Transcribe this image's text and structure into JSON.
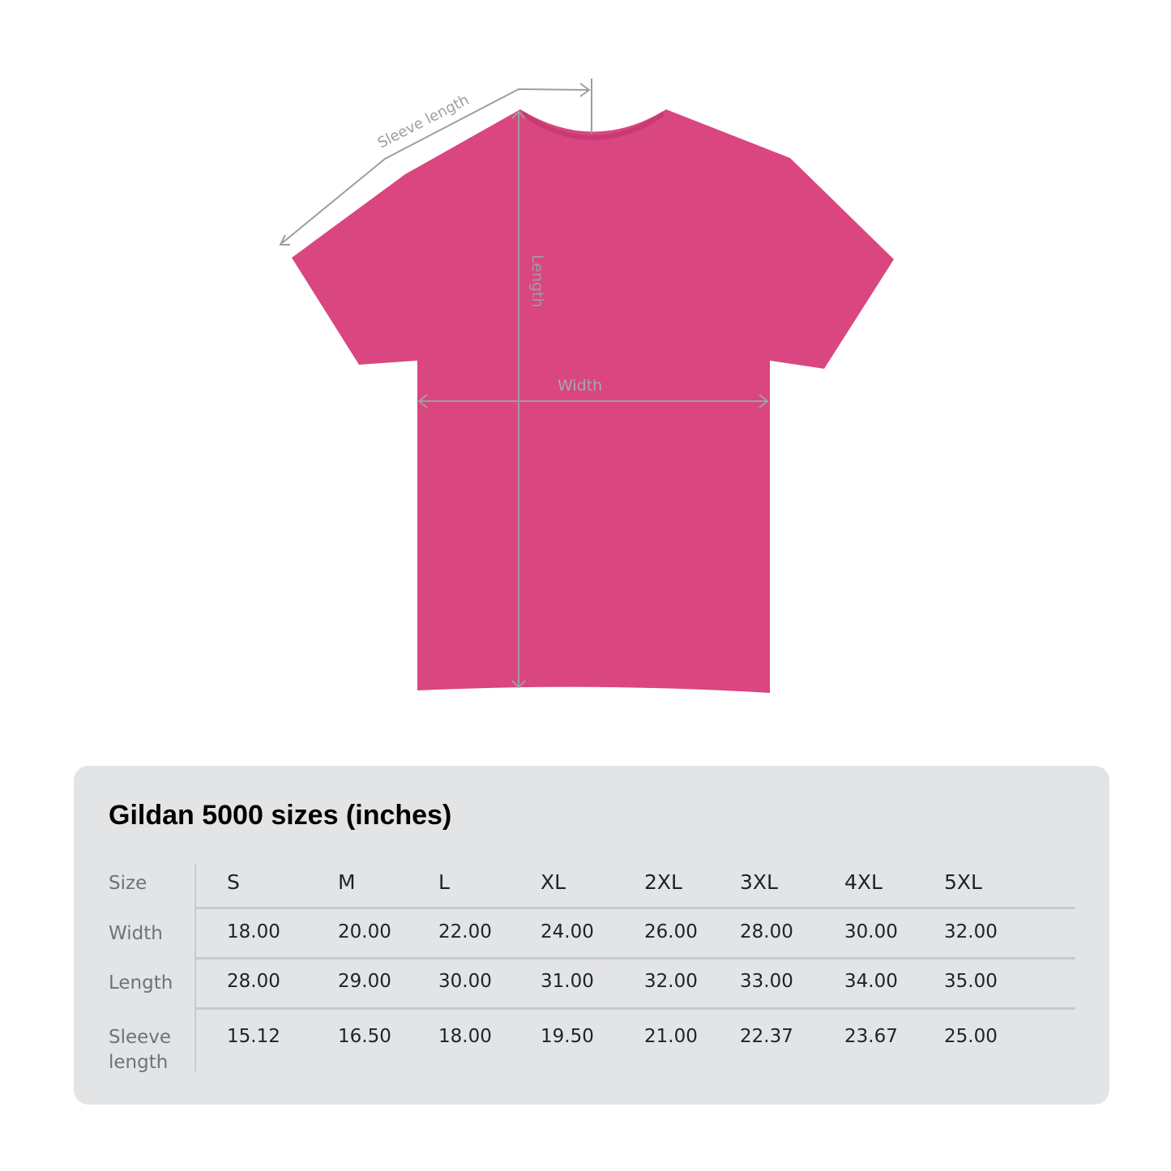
{
  "diagram": {
    "shirt_color": "#d94680",
    "measure_color": "#9e9e9e",
    "labels": {
      "sleeve_length": "Sleeve length",
      "length": "Length",
      "width": "Width"
    }
  },
  "table": {
    "title": "Gildan 5000 sizes (inches)",
    "row_labels": [
      "Size",
      "Width",
      "Length",
      "Sleeve length"
    ],
    "sizes": [
      "S",
      "M",
      "L",
      "XL",
      "2XL",
      "3XL",
      "4XL",
      "5XL"
    ],
    "width": [
      "18.00",
      "20.00",
      "22.00",
      "24.00",
      "26.00",
      "28.00",
      "30.00",
      "32.00"
    ],
    "length": [
      "28.00",
      "29.00",
      "30.00",
      "31.00",
      "32.00",
      "33.00",
      "34.00",
      "35.00"
    ],
    "sleeve_length": [
      "15.12",
      "16.50",
      "18.00",
      "19.50",
      "21.00",
      "22.37",
      "23.67",
      "25.00"
    ]
  }
}
